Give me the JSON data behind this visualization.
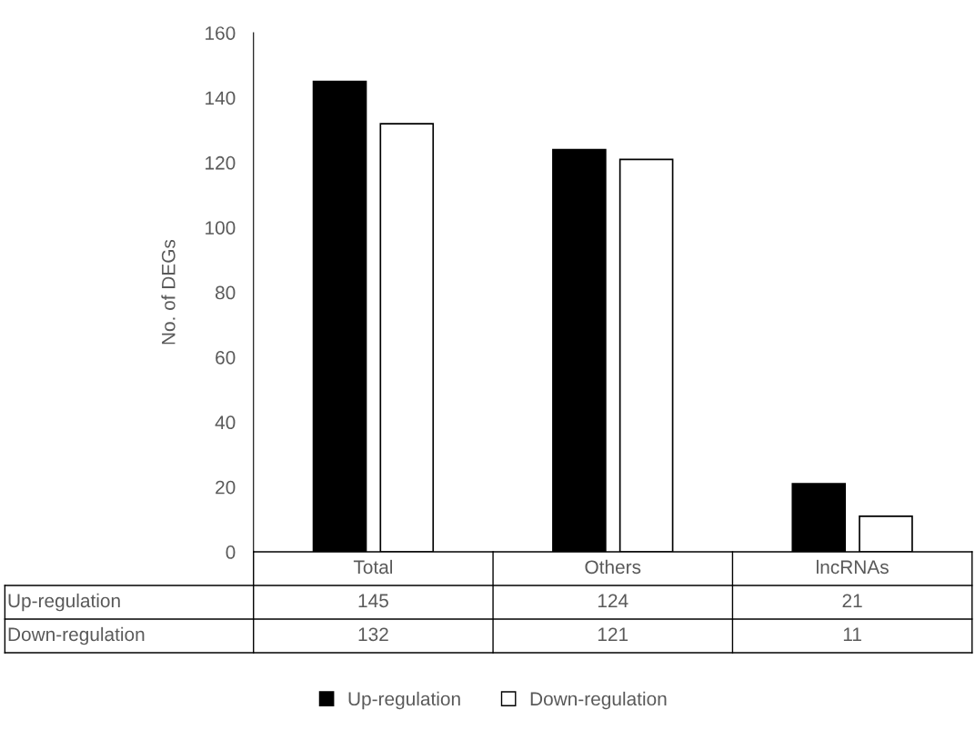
{
  "chart_data": {
    "type": "bar",
    "ylabel": "No. of DEGs",
    "categories": [
      "Total",
      "Others",
      "lncRNAs"
    ],
    "series": [
      {
        "name": "Up-regulation",
        "color": "#000000",
        "values": [
          145,
          124,
          21
        ]
      },
      {
        "name": "Down-regulation",
        "color": "#ffffff",
        "values": [
          132,
          121,
          11
        ]
      }
    ],
    "ylim": [
      0,
      160
    ],
    "yticks": [
      0,
      20,
      40,
      60,
      80,
      100,
      120,
      140,
      160
    ],
    "data_labels": true,
    "grid": false,
    "legend": "bottom"
  }
}
